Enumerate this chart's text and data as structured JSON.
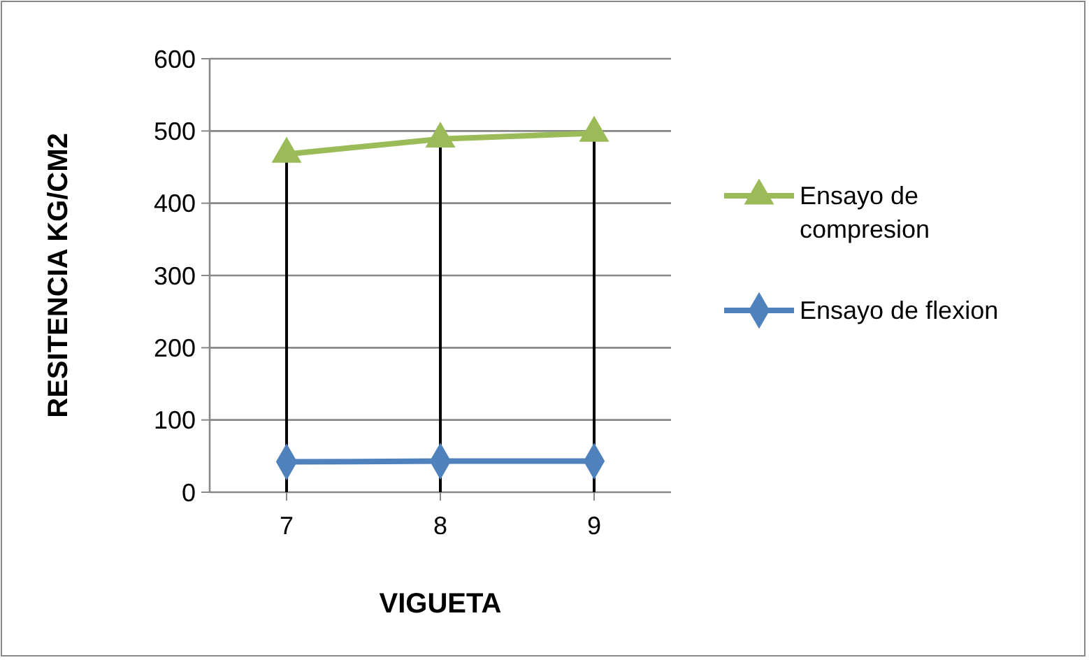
{
  "chart_data": {
    "type": "line",
    "xlabel": "VIGUETA",
    "ylabel": "RESITENCIA KG/CM2",
    "categories": [
      "7",
      "8",
      "9"
    ],
    "series": [
      {
        "name": "Ensayo de compresion",
        "color": "#9bbb59",
        "marker": "triangle",
        "values": [
          468,
          489,
          497
        ]
      },
      {
        "name": "Ensayo de flexion",
        "color": "#4f81bd",
        "marker": "diamond",
        "values": [
          42,
          43,
          43
        ]
      }
    ],
    "ylim": [
      0,
      600
    ],
    "yticks": [
      0,
      100,
      200,
      300,
      400,
      500,
      600
    ],
    "grid": "y",
    "legend": "right",
    "ref_lines": [
      {
        "axis": "x",
        "value": "7",
        "color": "#000000"
      },
      {
        "axis": "x",
        "value": "8",
        "color": "#000000"
      },
      {
        "axis": "x",
        "value": "9",
        "color": "#000000"
      }
    ]
  }
}
